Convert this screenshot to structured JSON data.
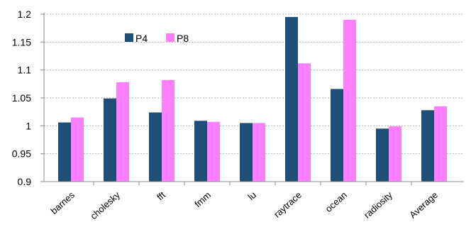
{
  "chart_data": {
    "type": "bar",
    "categories": [
      "barnes",
      "cholesky",
      "fft",
      "fmm",
      "lu",
      "raytrace",
      "ocean",
      "radiosity",
      "Average"
    ],
    "series": [
      {
        "name": "P4",
        "color": "#1f4e79",
        "values": [
          1.006,
          1.049,
          1.024,
          1.009,
          1.005,
          1.195,
          1.066,
          0.995,
          1.028
        ]
      },
      {
        "name": "P8",
        "color": "#ff80ff",
        "values": [
          1.015,
          1.078,
          1.082,
          1.007,
          1.005,
          1.112,
          1.19,
          0.999,
          1.035
        ]
      }
    ],
    "y_ticks": [
      "1.2",
      "1.15",
      "1.1",
      "1.05",
      "1",
      "0.95",
      "0.9"
    ],
    "ylim": [
      0.9,
      1.2
    ],
    "grid": true,
    "legend_position": "top-left inside plot",
    "title": "",
    "xlabel": "",
    "ylabel": ""
  }
}
